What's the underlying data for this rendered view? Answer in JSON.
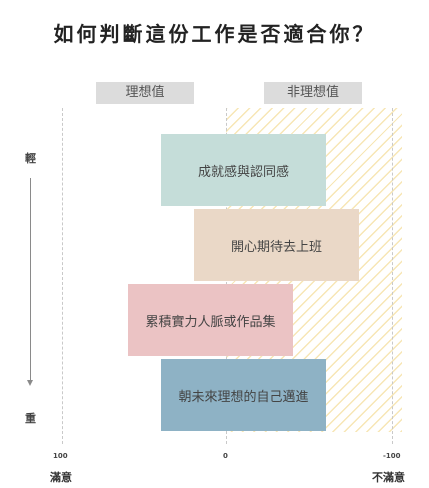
{
  "title": "如何判斷這份工作是否適合你？",
  "headers": {
    "ideal": "理想值",
    "non_ideal": "非理想值"
  },
  "side_labels": {
    "top": "輕",
    "bottom": "重"
  },
  "axis": {
    "left_tick": "100",
    "center_tick": "0",
    "right_tick": "-100",
    "left_label": "滿意",
    "right_label": "不滿意"
  },
  "bars": [
    {
      "label": "成就感與認同感",
      "from": 40,
      "to": -60,
      "color": "#c5ddd9"
    },
    {
      "label": "開心期待去上班",
      "from": 20,
      "to": -80,
      "color": "#ead8c7"
    },
    {
      "label": "累積實力人脈或作品集",
      "from": 60,
      "to": -40,
      "color": "#ebc3c4"
    },
    {
      "label": "朝未來理想的自己邁進",
      "from": 40,
      "to": -60,
      "color": "#8eb2c5"
    }
  ],
  "colors": {
    "hatch": "#f0d278",
    "header_bg": "#dcdcdc"
  }
}
